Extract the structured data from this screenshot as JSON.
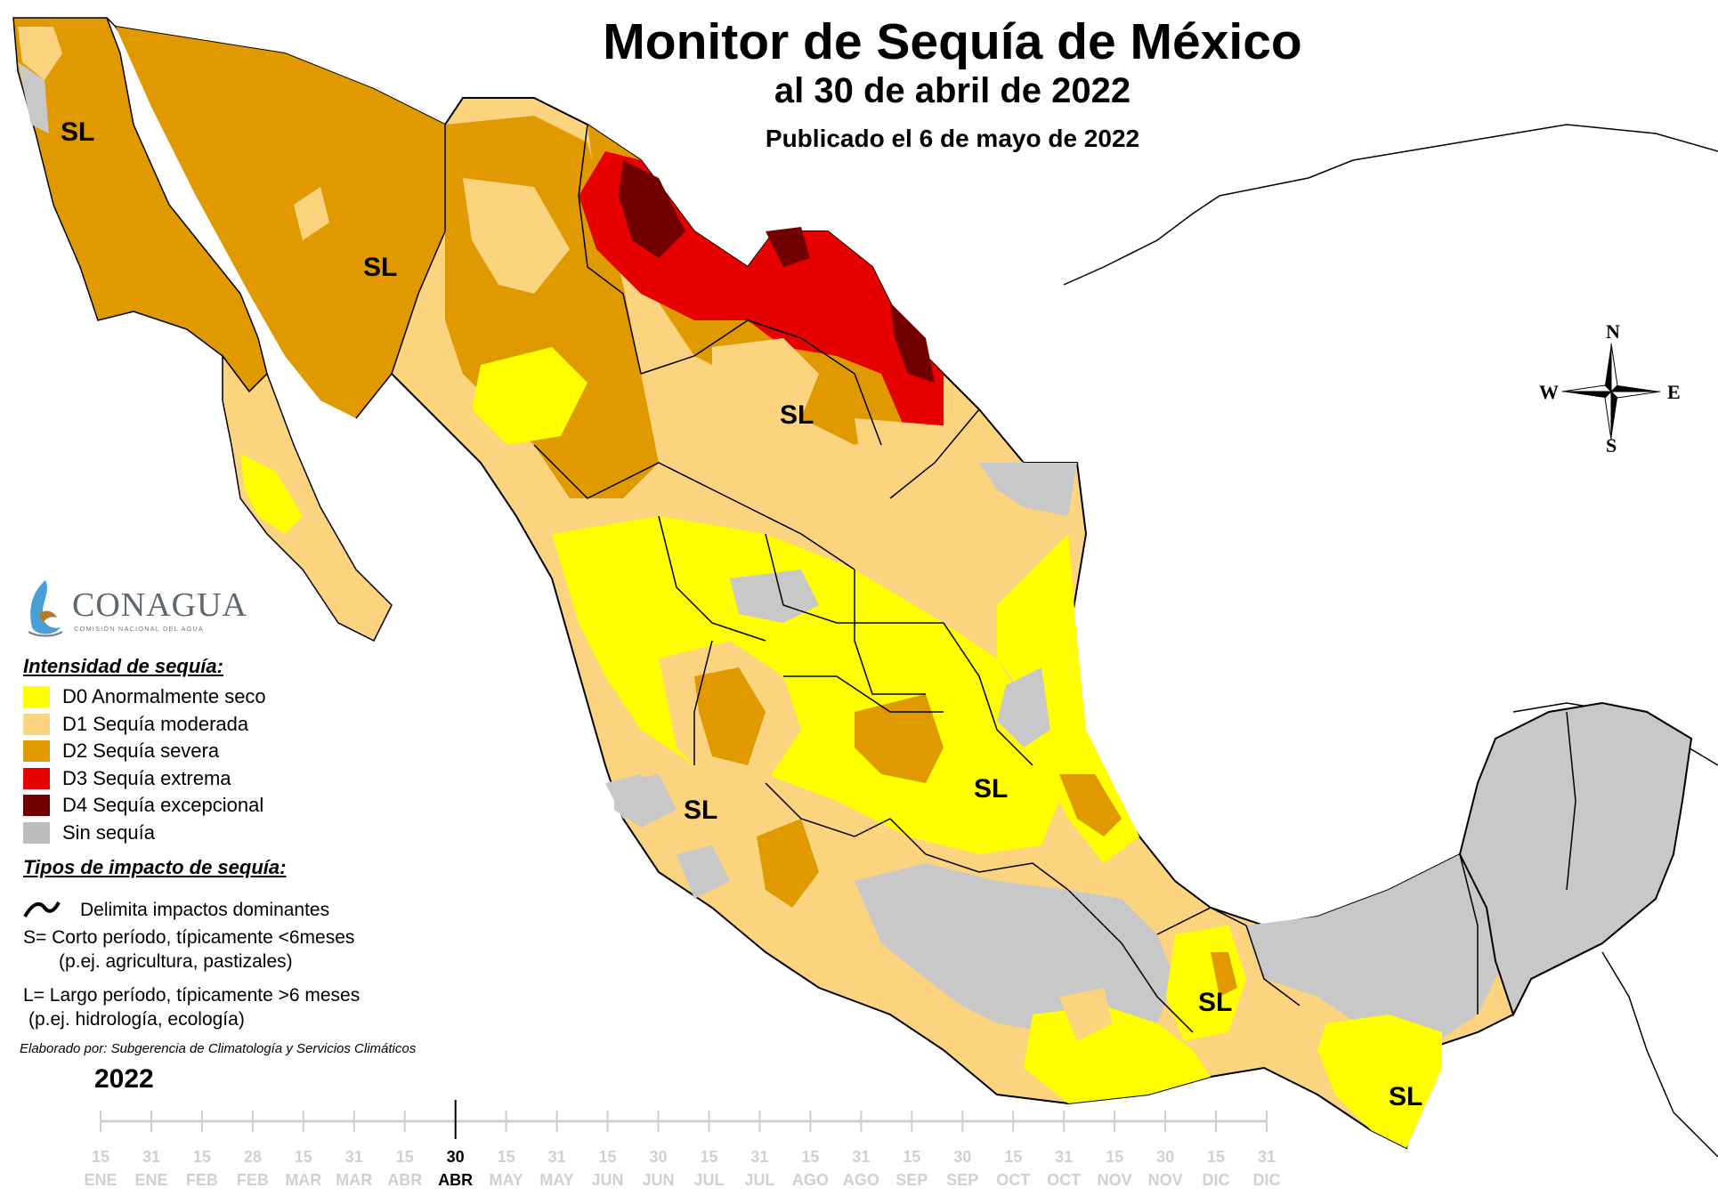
{
  "header": {
    "title": "Monitor de Sequía de México",
    "subtitle": "al 30 de abril de 2022",
    "published": "Publicado el 6 de mayo de 2022"
  },
  "compass": {
    "n": "N",
    "s": "S",
    "e": "E",
    "w": "W"
  },
  "logo": {
    "name": "CONAGUA",
    "tagline": "COMISIÓN NACIONAL DEL AGUA"
  },
  "map_labels": {
    "sl": "SL"
  },
  "colors": {
    "d0": "#ffff00",
    "d1": "#fcd37f",
    "d2": "#e09a00",
    "d3": "#e60000",
    "d4": "#730000",
    "none": "#c8c8c8",
    "water": "#ffffff"
  },
  "legend": {
    "title": "Intensidad de sequía:",
    "items": [
      {
        "label": "D0 Anormalmente seco",
        "color": "#ffff00"
      },
      {
        "label": "D1 Sequía moderada",
        "color": "#fcd37f"
      },
      {
        "label": "D2 Sequía severa",
        "color": "#e09a00"
      },
      {
        "label": "D3 Sequía extrema",
        "color": "#e60000"
      },
      {
        "label": "D4 Sequía excepcional",
        "color": "#730000"
      },
      {
        "label": "Sin sequía",
        "color": "#bdbdbd"
      }
    ],
    "impact_title": "Tipos de impacto de sequía:",
    "impact_line": "Delimita impactos dominantes",
    "impact_s": "S= Corto período, típicamente <6meses",
    "impact_s_eg": "(p.ej. agricultura, pastizales)",
    "impact_l": "L= Largo período, típicamente >6 meses",
    "impact_l_eg": "(p.ej. hidrología, ecología)"
  },
  "credit": "Elaborado por: Subgerencia de Climatología y Servicios Climáticos",
  "timeline": {
    "year": "2022",
    "active_index": 8,
    "ticks": [
      {
        "day": "15",
        "month": "ENE"
      },
      {
        "day": "31",
        "month": "ENE"
      },
      {
        "day": "15",
        "month": "FEB"
      },
      {
        "day": "28",
        "month": "FEB"
      },
      {
        "day": "15",
        "month": "MAR"
      },
      {
        "day": "31",
        "month": "MAR"
      },
      {
        "day": "15",
        "month": "ABR"
      },
      {
        "day": "30",
        "month": "ABR"
      },
      {
        "day": "15",
        "month": "MAY"
      },
      {
        "day": "31",
        "month": "MAY"
      },
      {
        "day": "15",
        "month": "JUN"
      },
      {
        "day": "30",
        "month": "JUN"
      },
      {
        "day": "15",
        "month": "JUL"
      },
      {
        "day": "31",
        "month": "JUL"
      },
      {
        "day": "15",
        "month": "AGO"
      },
      {
        "day": "31",
        "month": "AGO"
      },
      {
        "day": "15",
        "month": "SEP"
      },
      {
        "day": "30",
        "month": "SEP"
      },
      {
        "day": "15",
        "month": "OCT"
      },
      {
        "day": "31",
        "month": "OCT"
      },
      {
        "day": "15",
        "month": "NOV"
      },
      {
        "day": "30",
        "month": "NOV"
      },
      {
        "day": "15",
        "month": "DIC"
      },
      {
        "day": "31",
        "month": "DIC"
      }
    ]
  }
}
